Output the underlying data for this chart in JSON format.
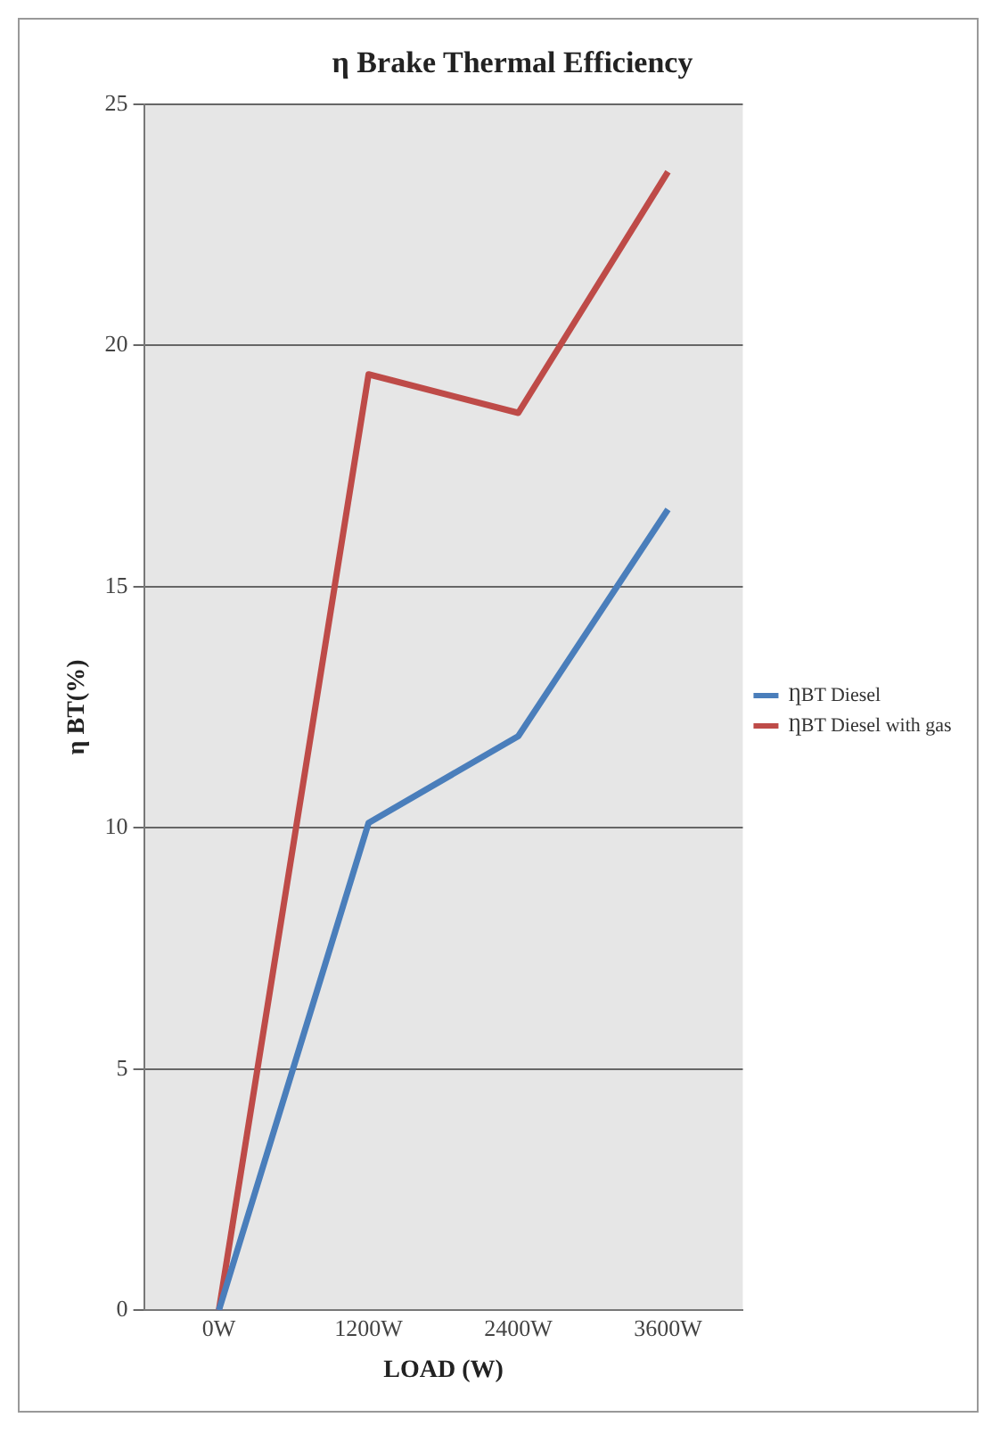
{
  "chart_data": {
    "type": "line",
    "title": "η Brake Thermal Efficiency",
    "xlabel": "LOAD (W)",
    "ylabel": "η BT(%)",
    "categories": [
      "0W",
      "1200W",
      "2400W",
      "3600W"
    ],
    "series": [
      {
        "name": "ȠBT Diesel",
        "color": "#4a7ebb",
        "values": [
          0,
          10.1,
          11.9,
          16.6
        ]
      },
      {
        "name": "ȠBT Diesel with gas",
        "color": "#be4b48",
        "values": [
          0,
          19.4,
          18.6,
          23.6
        ]
      }
    ],
    "ylim": [
      0,
      25
    ],
    "yticks": [
      0,
      5,
      10,
      15,
      20,
      25
    ],
    "grid": "y",
    "legend": "right",
    "marker": "none",
    "line_style": "solid"
  }
}
